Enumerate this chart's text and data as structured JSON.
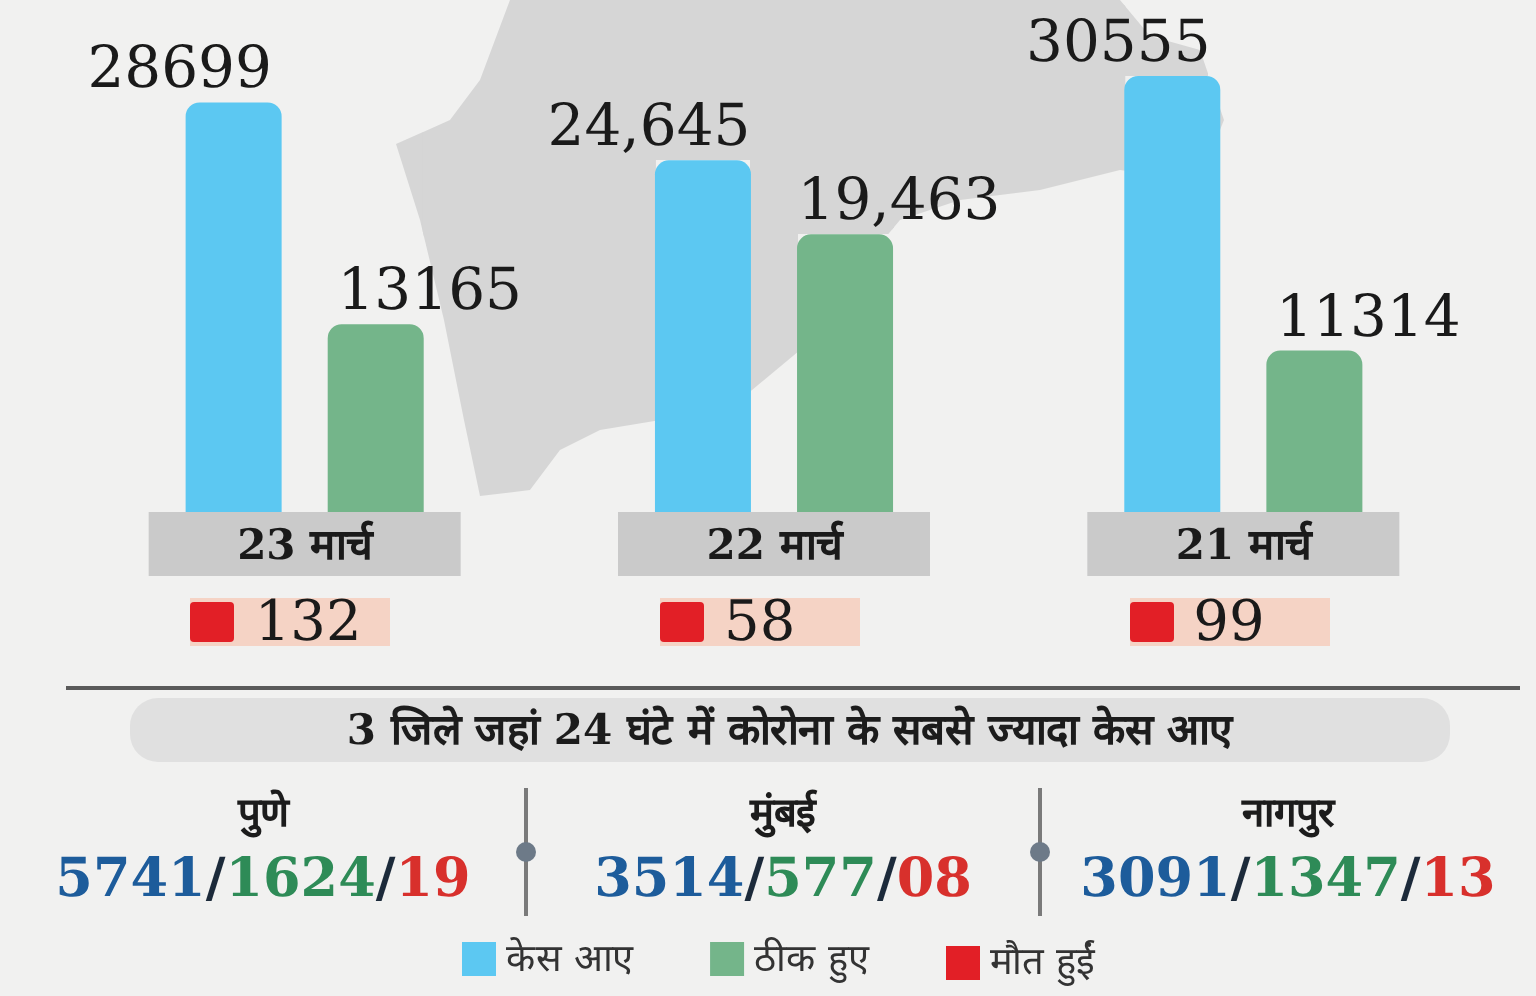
{
  "chart_data": [
    {
      "type": "bar",
      "categories": [
        "23 मार्च",
        "22 मार्च",
        "21 मार्च"
      ],
      "series": [
        {
          "name": "केस आए",
          "color": "#5cc8f2",
          "values": [
            28699,
            24645,
            30555
          ],
          "value_labels": [
            "28699",
            "24,645",
            "30555"
          ]
        },
        {
          "name": "ठीक हुए",
          "color": "#74b58a",
          "values": [
            13165,
            19463,
            11314
          ],
          "value_labels": [
            "13165",
            "19,463",
            "11314"
          ]
        }
      ],
      "annotations": [
        "132",
        "58",
        "99",
        "मौत हुईं"
      ],
      "legend": "bottom",
      "tick_labels": "x"
    },
    {
      "type": "other",
      "title": "3 जिले जहां 24 घंटे में कोरोना के सबसे ज्यादा केस आए",
      "annotations": [
        "पुणे",
        "5741/1624/19",
        "मुंबई",
        "3514/577/08",
        "नागपुर",
        "3091/1347/13"
      ],
      "colors": [
        "#1d5c9b",
        "#2e8b57",
        "#d8302c"
      ]
    }
  ]
}
